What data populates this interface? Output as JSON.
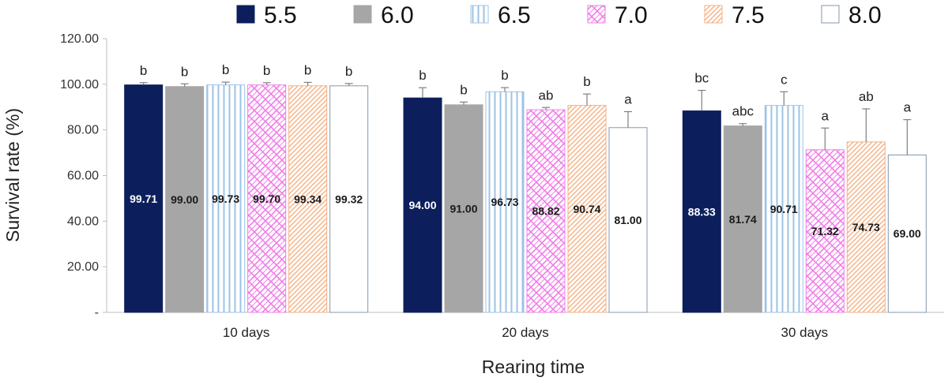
{
  "chart_data": {
    "type": "bar",
    "xlabel": "Rearing time",
    "ylabel": "Survival rate (%)",
    "categories": [
      "10 days",
      "20 days",
      "30 days"
    ],
    "y_ticks": [
      "-",
      "20.00",
      "40.00",
      "60.00",
      "80.00",
      "100.00",
      "120.00"
    ],
    "ylim": [
      0,
      120
    ],
    "legend_position": "top",
    "grid": false,
    "series": [
      {
        "name": "5.5",
        "color": "#0c1f5c",
        "pattern": "solid",
        "values": [
          99.71,
          94.0,
          88.33
        ],
        "labels": [
          "99.71",
          "94.00",
          "88.33"
        ],
        "errors": [
          1.0,
          4.5,
          9.0
        ],
        "letters": [
          "b",
          "b",
          "bc"
        ]
      },
      {
        "name": "6.0",
        "color": "#a6a6a6",
        "pattern": "solid",
        "values": [
          99.0,
          91.0,
          81.74
        ],
        "labels": [
          "99.00",
          "91.00",
          "81.74"
        ],
        "errors": [
          1.2,
          1.2,
          1.0
        ],
        "letters": [
          "b",
          "b",
          "abc"
        ]
      },
      {
        "name": "6.5",
        "color": "#9dc3e6",
        "pattern": "vertical",
        "values": [
          99.73,
          96.73,
          90.71
        ],
        "labels": [
          "99.73",
          "96.73",
          "90.71"
        ],
        "errors": [
          1.2,
          1.8,
          6.0
        ],
        "letters": [
          "b",
          "b",
          "c"
        ]
      },
      {
        "name": "7.0",
        "color": "#f07de8",
        "pattern": "lattice",
        "values": [
          99.7,
          88.82,
          71.32
        ],
        "labels": [
          "99.70",
          "88.82",
          "71.32"
        ],
        "errors": [
          1.0,
          1.0,
          9.5
        ],
        "letters": [
          "b",
          "ab",
          "a"
        ]
      },
      {
        "name": "7.5",
        "color": "#f4b183",
        "pattern": "diagonal",
        "values": [
          99.34,
          90.74,
          74.73
        ],
        "labels": [
          "99.34",
          "90.74",
          "74.73"
        ],
        "errors": [
          1.5,
          5.0,
          14.5
        ],
        "letters": [
          "b",
          "b",
          "ab"
        ]
      },
      {
        "name": "8.0",
        "color": "#8497b0",
        "pattern": "outline",
        "values": [
          99.32,
          81.0,
          69.0
        ],
        "labels": [
          "99.32",
          "81.00",
          "69.00"
        ],
        "errors": [
          1.0,
          7.0,
          15.5
        ],
        "letters": [
          "b",
          "a",
          "a"
        ]
      }
    ]
  }
}
